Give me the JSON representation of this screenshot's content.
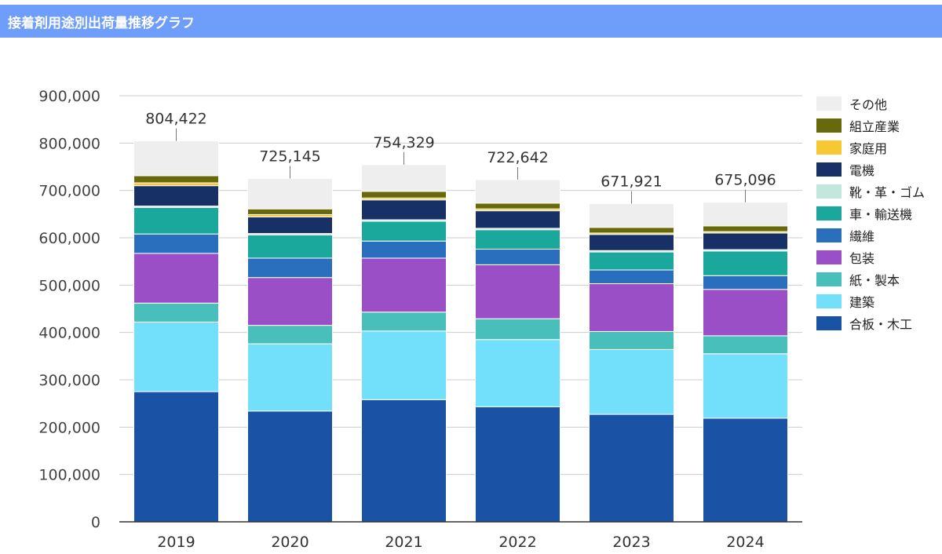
{
  "header": {
    "title": "接着剤用途別出荷量推移グラフ"
  },
  "chart_data": {
    "type": "bar",
    "stacked": true,
    "title": "",
    "xlabel": "",
    "ylabel": "",
    "ylim": [
      0,
      900000
    ],
    "yticks": [
      0,
      100000,
      200000,
      300000,
      400000,
      500000,
      600000,
      700000,
      800000,
      900000
    ],
    "ytick_labels": [
      "0",
      "100,000",
      "200,000",
      "300,000",
      "400,000",
      "500,000",
      "600,000",
      "700,000",
      "800,000",
      "900,000"
    ],
    "grid": true,
    "legend_position": "right",
    "categories": [
      "2019",
      "2020",
      "2021",
      "2022",
      "2023",
      "2024"
    ],
    "totals": [
      804422,
      725145,
      754329,
      722642,
      671921,
      675096
    ],
    "total_labels": [
      "804,422",
      "725,145",
      "754,329",
      "722,642",
      "671,921",
      "675,096"
    ],
    "series": [
      {
        "name": "合板・木工",
        "color": "#1a53a6",
        "values": [
          275000,
          234000,
          258000,
          243000,
          227000,
          219000
        ]
      },
      {
        "name": "建築",
        "color": "#72e0fa",
        "values": [
          147000,
          142000,
          145000,
          142000,
          137000,
          136000
        ]
      },
      {
        "name": "紙・製本",
        "color": "#49bfbb",
        "values": [
          40000,
          39000,
          40000,
          44000,
          38000,
          38000
        ]
      },
      {
        "name": "包装",
        "color": "#9a4fc6",
        "values": [
          105000,
          101000,
          114000,
          114000,
          101000,
          98000
        ]
      },
      {
        "name": "繊維",
        "color": "#2a6fbd",
        "values": [
          41000,
          41000,
          36000,
          33000,
          29000,
          29000
        ]
      },
      {
        "name": "車・輸送機",
        "color": "#1ba89c",
        "values": [
          56000,
          49000,
          42000,
          41000,
          38000,
          52000
        ]
      },
      {
        "name": "靴・革・ゴム",
        "color": "#c2e8de",
        "values": [
          3000,
          3000,
          3000,
          3000,
          3000,
          3000
        ]
      },
      {
        "name": "電機",
        "color": "#173166",
        "values": [
          43000,
          35000,
          42000,
          37000,
          34000,
          35000
        ]
      },
      {
        "name": "家庭用",
        "color": "#f8c832",
        "values": [
          6000,
          5000,
          4000,
          4000,
          3000,
          3000
        ]
      },
      {
        "name": "組立産業",
        "color": "#68690a",
        "values": [
          15000,
          12000,
          14000,
          12000,
          12000,
          12000
        ]
      },
      {
        "name": "その他",
        "color": "#eeeeee",
        "values": [
          73422,
          64145,
          56329,
          49642,
          49921,
          50096
        ]
      }
    ]
  }
}
